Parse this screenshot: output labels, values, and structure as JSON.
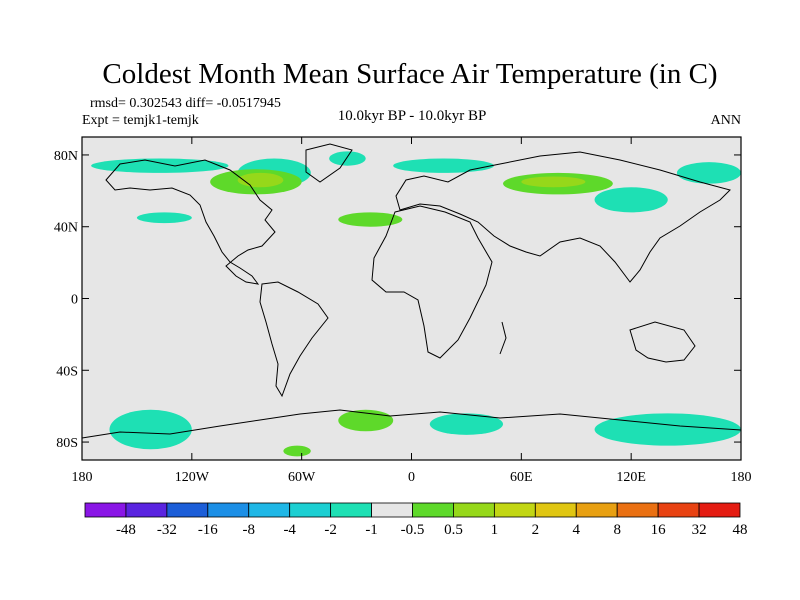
{
  "chart_data": {
    "type": "heatmap",
    "title": "Coldest Month Mean Surface Air Temperature (in C)",
    "stats_line": "rmsd= 0.302543 diff= -0.0517945",
    "experiment_line": "Expt = temjk1-temjk",
    "period_label": "10.0kyr BP - 10.0kyr BP",
    "season_label": "ANN",
    "x_ticks": [
      {
        "value": -180,
        "label": "180"
      },
      {
        "value": -120,
        "label": "120W"
      },
      {
        "value": -60,
        "label": "60W"
      },
      {
        "value": 0,
        "label": "0"
      },
      {
        "value": 60,
        "label": "60E"
      },
      {
        "value": 120,
        "label": "120E"
      },
      {
        "value": 180,
        "label": "180"
      }
    ],
    "y_ticks": [
      {
        "value": 80,
        "label": "80N"
      },
      {
        "value": 40,
        "label": "40N"
      },
      {
        "value": 0,
        "label": "0"
      },
      {
        "value": -40,
        "label": "40S"
      },
      {
        "value": -80,
        "label": "80S"
      }
    ],
    "xlim": [
      -180,
      180
    ],
    "ylim": [
      -90,
      90
    ],
    "colorbar": {
      "colors": [
        "#8a16e6",
        "#5a24e0",
        "#1c5ed8",
        "#1c8fe6",
        "#1fb7e6",
        "#1ccfd2",
        "#1ee0b4",
        "#e6e6e6",
        "#5ed92a",
        "#96d81a",
        "#c2d614",
        "#e0c612",
        "#e8a012",
        "#ea7012",
        "#e84212",
        "#e41c12"
      ],
      "labels": [
        "-48",
        "-32",
        "-16",
        "-8",
        "-4",
        "-2",
        "-1",
        "-0.5",
        "0.5",
        "1",
        "2",
        "4",
        "8",
        "16",
        "32",
        "48"
      ]
    },
    "background_category": "-0.5 to 0.5",
    "anomaly_patches": [
      {
        "category": "-1 to -0.5",
        "lon": [
          -175,
          -100
        ],
        "lat": [
          70,
          78
        ]
      },
      {
        "category": "-1 to -0.5",
        "lon": [
          -95,
          -55
        ],
        "lat": [
          62,
          78
        ]
      },
      {
        "category": "-1 to -0.5",
        "lon": [
          -45,
          -25
        ],
        "lat": [
          74,
          82
        ]
      },
      {
        "category": "-1 to -0.5",
        "lon": [
          -10,
          45
        ],
        "lat": [
          70,
          78
        ]
      },
      {
        "category": "-1 to -0.5",
        "lon": [
          100,
          140
        ],
        "lat": [
          48,
          62
        ]
      },
      {
        "category": "-1 to -0.5",
        "lon": [
          145,
          180
        ],
        "lat": [
          64,
          76
        ]
      },
      {
        "category": "-1 to -0.5",
        "lon": [
          -150,
          -120
        ],
        "lat": [
          42,
          48
        ]
      },
      {
        "category": "-1 to -0.5",
        "lon": [
          -165,
          -120
        ],
        "lat": [
          -84,
          -62
        ]
      },
      {
        "category": "-1 to -0.5",
        "lon": [
          100,
          180
        ],
        "lat": [
          -82,
          -64
        ]
      },
      {
        "category": "-1 to -0.5",
        "lon": [
          10,
          50
        ],
        "lat": [
          -76,
          -64
        ]
      },
      {
        "category": "0.5 to 1",
        "lon": [
          -110,
          -60
        ],
        "lat": [
          58,
          72
        ]
      },
      {
        "category": "0.5 to 1",
        "lon": [
          50,
          110
        ],
        "lat": [
          58,
          70
        ]
      },
      {
        "category": "0.5 to 1",
        "lon": [
          -40,
          -5
        ],
        "lat": [
          40,
          48
        ]
      },
      {
        "category": "0.5 to 1",
        "lon": [
          -40,
          -10
        ],
        "lat": [
          -74,
          -62
        ]
      },
      {
        "category": "0.5 to 1",
        "lon": [
          -70,
          -55
        ],
        "lat": [
          -88,
          -82
        ]
      },
      {
        "category": "1 to 2",
        "lon": [
          -95,
          -70
        ],
        "lat": [
          62,
          70
        ]
      },
      {
        "category": "1 to 2",
        "lon": [
          60,
          95
        ],
        "lat": [
          62,
          68
        ]
      }
    ]
  }
}
